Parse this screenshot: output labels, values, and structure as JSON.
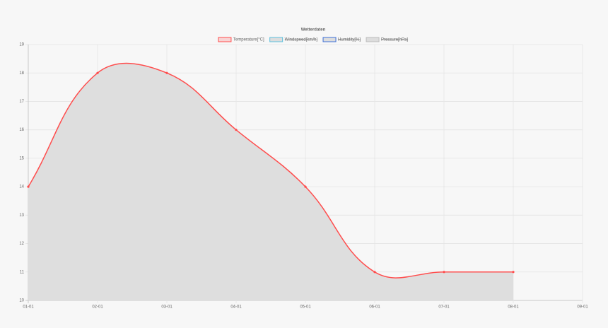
{
  "chart_data": {
    "type": "line",
    "title": "Wetterdaten",
    "categories": [
      "01-01",
      "02-01",
      "03-01",
      "04-01",
      "05-01",
      "06-01",
      "07-01",
      "08-01",
      "09-01"
    ],
    "series": [
      {
        "name": "Temperature[°C]",
        "color": "#ff4d4d",
        "fill": "#dedede",
        "values": [
          14,
          18,
          18,
          16,
          14,
          11,
          11,
          11,
          null
        ]
      },
      {
        "name": "Windspeed[km/h]",
        "color": "#5bc0de",
        "hidden": true
      },
      {
        "name": "Humidity[%]",
        "color": "#3c6fd8",
        "hidden": true
      },
      {
        "name": "Pressure[hPa]",
        "color": "#bbbbbb",
        "hidden": true
      }
    ],
    "ylim": [
      10,
      19
    ],
    "yticks": [
      10,
      11,
      12,
      13,
      14,
      15,
      16,
      17,
      18,
      19
    ],
    "grid": true,
    "legend": "top"
  }
}
